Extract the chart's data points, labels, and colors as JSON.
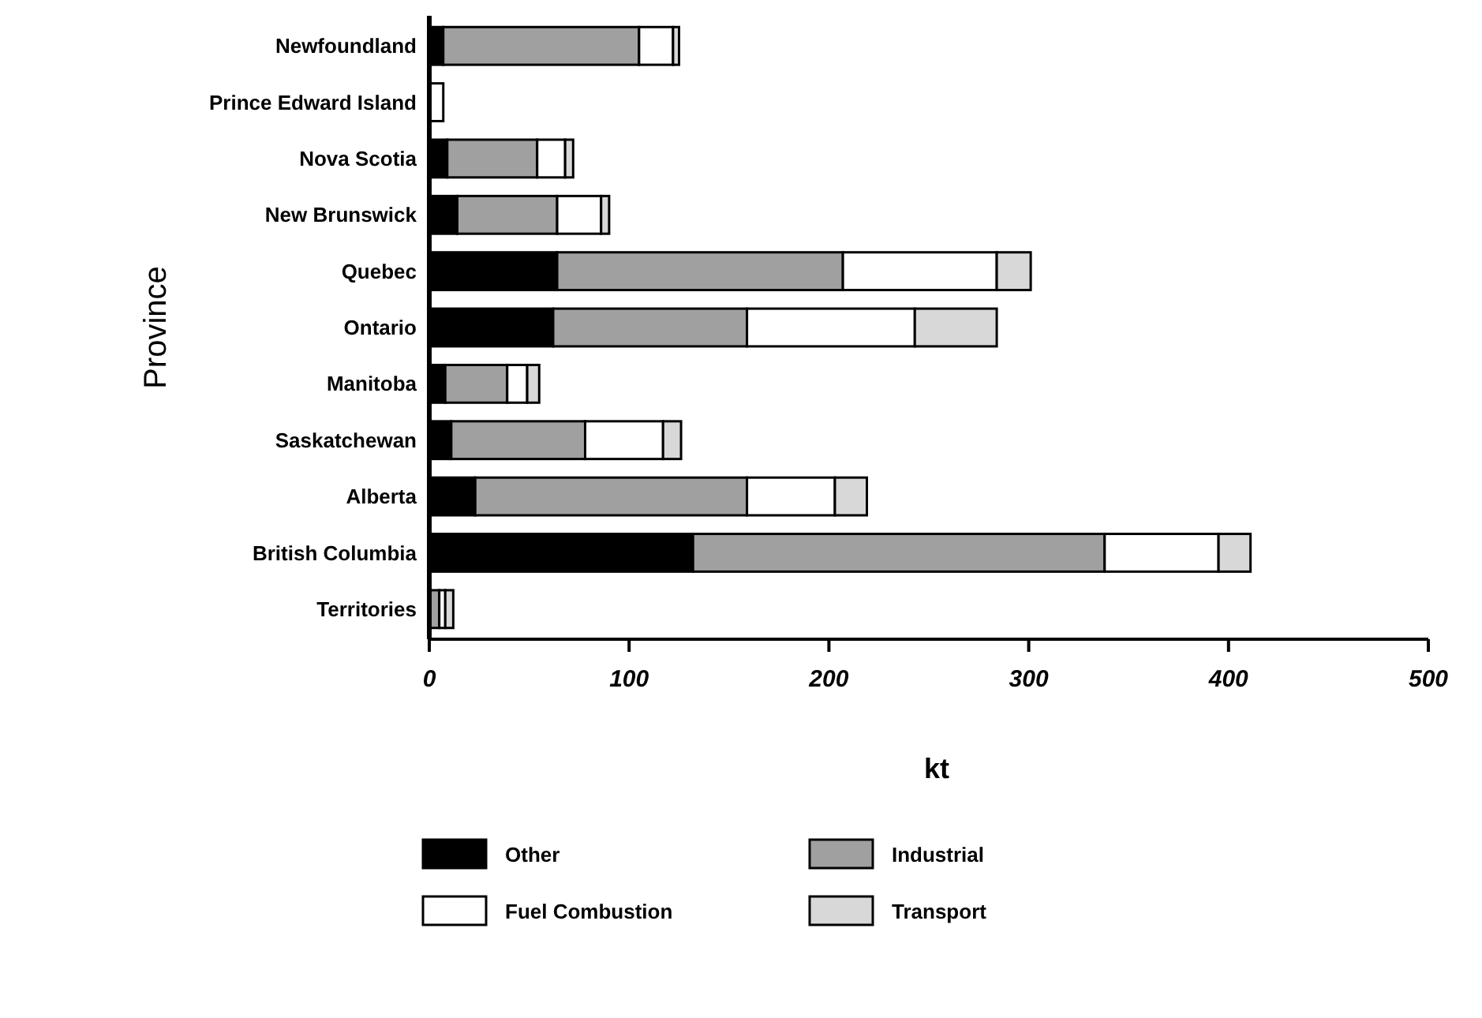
{
  "chart_data": {
    "type": "bar",
    "orientation": "horizontal",
    "stacked": true,
    "xlabel": "kt",
    "ylabel": "Province",
    "categories": [
      "Newfoundland",
      "Prince Edward Island",
      "Nova Scotia",
      "New Brunswick",
      "Quebec",
      "Ontario",
      "Manitoba",
      "Saskatchewan",
      "Alberta",
      "British Columbia",
      "Territories"
    ],
    "series": [
      {
        "name": "Other",
        "color": "#000000",
        "values": [
          7,
          null,
          9,
          14,
          64,
          62,
          8,
          11,
          23,
          132,
          null
        ]
      },
      {
        "name": "Industrial",
        "color": "#a0a0a0",
        "values": [
          98,
          0,
          45,
          50,
          143,
          97,
          31,
          67,
          136,
          206,
          5
        ]
      },
      {
        "name": "Fuel Combustion",
        "color": "#ffffff",
        "values": [
          17,
          7,
          14,
          22,
          77,
          84,
          10,
          39,
          44,
          57,
          3
        ]
      },
      {
        "name": "Transport",
        "color": "#d8d8d8",
        "values": [
          3,
          0,
          4,
          4,
          17,
          41,
          6,
          9,
          16,
          16,
          4
        ]
      }
    ],
    "xlim": [
      0,
      500
    ],
    "xticks": [
      0,
      100,
      200,
      300,
      400,
      500
    ],
    "legend": "bottom",
    "grid": false
  }
}
